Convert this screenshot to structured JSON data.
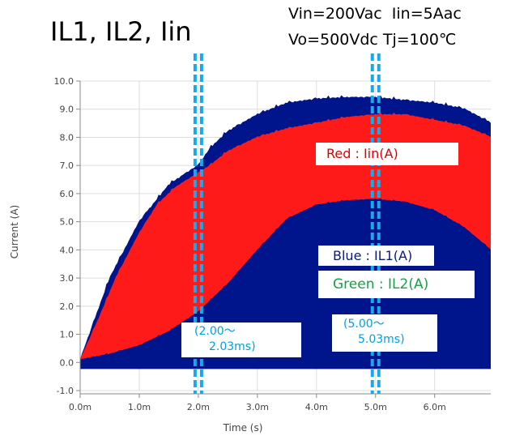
{
  "heading": {
    "title": "IL1, IL2, Iin",
    "conditions_line1": "Vin=200Vac  Iin=5Aac",
    "conditions_line2": "Vo=500Vdc Tj=100℃"
  },
  "legend": {
    "red": "Red : Iin(A)",
    "blue": "Blue : IL1(A)",
    "green": "Green : IL2(A)"
  },
  "windows": [
    {
      "line1": "(2.00～",
      "line2": "2.03ms)"
    },
    {
      "line1": "(5.00～",
      "line2": "5.03ms)"
    }
  ],
  "colors": {
    "red": "#ff1a1a",
    "blue": "#00148c",
    "cyan": "#1aa8ea"
  },
  "chart_data": {
    "type": "area",
    "xlabel": "Time (s)",
    "ylabel": "Current (A)",
    "xlim": [
      0.0,
      6.95
    ],
    "ylim": [
      -1.0,
      10.0
    ],
    "x_unit_note": "ms",
    "xticks": [
      "0.0m",
      "1.0m",
      "2.0m",
      "3.0m",
      "4.0m",
      "5.0m",
      "6.0m"
    ],
    "yticks": [
      "10.0",
      "9.0",
      "8.0",
      "7.0",
      "6.0",
      "5.0",
      "4.0",
      "3.0",
      "2.0",
      "1.0",
      "0.0",
      "-1.0"
    ],
    "grid": true,
    "markers_x": [
      2.0,
      2.03,
      5.0,
      5.03
    ],
    "series": [
      {
        "name": "Iin(A)",
        "color": "red",
        "x": [
          0.0,
          0.3,
          0.6,
          1.0,
          1.3,
          1.6,
          1.9,
          2.2,
          2.5,
          3.0,
          3.5,
          4.0,
          4.5,
          5.0,
          5.5,
          6.0,
          6.5,
          6.95
        ],
        "values": [
          0.1,
          1.5,
          3.0,
          4.6,
          5.6,
          6.2,
          6.6,
          7.0,
          7.5,
          8.0,
          8.3,
          8.5,
          8.7,
          8.8,
          8.8,
          8.6,
          8.4,
          8.0
        ]
      },
      {
        "name": "IL1(A)",
        "color": "blue",
        "x": [
          0.0,
          0.5,
          1.0,
          1.5,
          2.0,
          2.2,
          2.5,
          3.0,
          3.5,
          4.0,
          4.5,
          5.0,
          5.5,
          6.0,
          6.5,
          6.95
        ],
        "values": [
          0.1,
          3.0,
          5.0,
          6.3,
          7.0,
          7.6,
          8.2,
          8.8,
          9.2,
          9.35,
          9.4,
          9.4,
          9.3,
          9.2,
          9.0,
          8.5
        ]
      },
      {
        "name": "IL1 lower band",
        "color": "blue",
        "x": [
          0.0,
          0.5,
          1.0,
          1.5,
          2.0,
          2.5,
          3.0,
          3.5,
          4.0,
          4.5,
          5.0,
          5.5,
          6.0,
          6.5,
          6.95
        ],
        "values": [
          0.1,
          0.3,
          0.6,
          1.1,
          1.8,
          2.8,
          4.0,
          5.1,
          5.6,
          5.75,
          5.8,
          5.7,
          5.4,
          4.8,
          4.0
        ]
      }
    ]
  }
}
